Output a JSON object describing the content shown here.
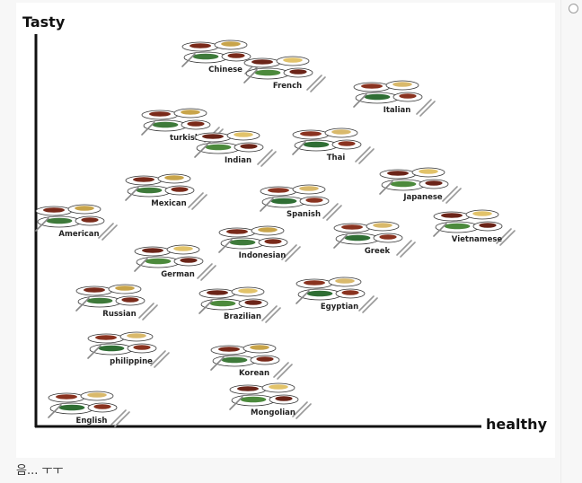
{
  "diagram": {
    "y_axis_label": "Tasty",
    "x_axis_label": "healthy",
    "cuisines": [
      {
        "name": "Chinese",
        "healthy": 4,
        "tasty": 10
      },
      {
        "name": "French",
        "healthy": 5,
        "tasty": 9.5
      },
      {
        "name": "Italian",
        "healthy": 7,
        "tasty": 8.8
      },
      {
        "name": "turkish",
        "healthy": 3,
        "tasty": 7.9
      },
      {
        "name": "Indian",
        "healthy": 4,
        "tasty": 7.6
      },
      {
        "name": "Thai",
        "healthy": 6,
        "tasty": 7.6
      },
      {
        "name": "Mexican",
        "healthy": 3,
        "tasty": 6.6
      },
      {
        "name": "Japanese",
        "healthy": 7.5,
        "tasty": 6.4
      },
      {
        "name": "Spanish",
        "healthy": 5.5,
        "tasty": 6.2
      },
      {
        "name": "American",
        "healthy": 1,
        "tasty": 5.8
      },
      {
        "name": "Vietnamese",
        "healthy": 9,
        "tasty": 5.6
      },
      {
        "name": "Greek",
        "healthy": 7,
        "tasty": 5.4
      },
      {
        "name": "Indonesian",
        "healthy": 4.5,
        "tasty": 5.3
      },
      {
        "name": "German",
        "healthy": 3,
        "tasty": 4.9
      },
      {
        "name": "Egyptian",
        "healthy": 6.5,
        "tasty": 4.1
      },
      {
        "name": "Russian",
        "healthy": 2,
        "tasty": 3.8
      },
      {
        "name": "Brazilian",
        "healthy": 4.5,
        "tasty": 3.7
      },
      {
        "name": "philippine",
        "healthy": 2.5,
        "tasty": 2.8
      },
      {
        "name": "Korean",
        "healthy": 4.5,
        "tasty": 2.2
      },
      {
        "name": "Mongolian",
        "healthy": 5,
        "tasty": 1.2
      },
      {
        "name": "English",
        "healthy": 1.5,
        "tasty": 1
      }
    ]
  },
  "caption": "음... ㅜㅜ",
  "colors": {
    "background": "#f7f7f7",
    "card": "#ffffff",
    "axis": "#111111"
  }
}
